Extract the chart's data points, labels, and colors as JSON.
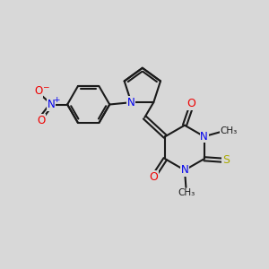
{
  "background_color": "#d8d8d8",
  "atom_colors": {
    "C": "#1a1a1a",
    "N": "#0000ee",
    "O": "#ee0000",
    "S": "#aaaa00",
    "H": "#1a1a1a"
  },
  "bond_color": "#1a1a1a",
  "bond_lw": 1.5,
  "font_size": 8.5
}
